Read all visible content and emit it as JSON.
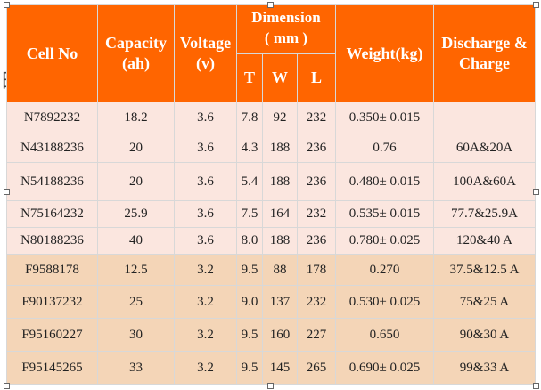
{
  "page_edge_glyph": "日",
  "headers": {
    "cell_no": "Cell No",
    "capacity": "Capacity\n(ah)",
    "capacity_line1": "Capacity",
    "capacity_line2": "(ah)",
    "voltage_line1": "Voltage",
    "voltage_line2": "(v)",
    "dimension_line1": "Dimension",
    "dimension_line2": "( mm )",
    "t": "T",
    "w": "W",
    "l": "L",
    "weight": "Weight(kg)",
    "discharge_line1": "Discharge &",
    "discharge_line2": "Charge"
  },
  "rows": [
    {
      "style": "light",
      "cell_no": "N7892232",
      "capacity": "18.2",
      "voltage": "3.6",
      "t": "7.8",
      "w": "92",
      "l": "232",
      "weight": "0.350± 0.015",
      "discharge": ""
    },
    {
      "style": "light",
      "cell_no": "N43188236",
      "capacity": "20",
      "voltage": "3.6",
      "t": "4.3",
      "w": "188",
      "l": "236",
      "weight": "0.76",
      "discharge": "60A&20A"
    },
    {
      "style": "light",
      "cell_no": "N54188236",
      "capacity": "20",
      "voltage": "3.6",
      "t": "5.4",
      "w": "188",
      "l": "236",
      "weight": "0.480± 0.015",
      "discharge": "100A&60A"
    },
    {
      "style": "light",
      "cell_no": "N75164232",
      "capacity": "25.9",
      "voltage": "3.6",
      "t": "7.5",
      "w": "164",
      "l": "232",
      "weight": "0.535± 0.015",
      "discharge": "77.7&25.9A"
    },
    {
      "style": "light",
      "cell_no": "N80188236",
      "capacity": "40",
      "voltage": "3.6",
      "t": "8.0",
      "w": "188",
      "l": "236",
      "weight": "0.780± 0.025",
      "discharge": "120&40 A"
    },
    {
      "style": "tan",
      "cell_no": "F9588178",
      "capacity": "12.5",
      "voltage": "3.2",
      "t": "9.5",
      "w": "88",
      "l": "178",
      "weight": "0.270",
      "discharge": "37.5&12.5 A"
    },
    {
      "style": "tan",
      "cell_no": "F90137232",
      "capacity": "25",
      "voltage": "3.2",
      "t": "9.0",
      "w": "137",
      "l": "232",
      "weight": "0.530± 0.025",
      "discharge": "75&25 A"
    },
    {
      "style": "tan",
      "cell_no": "F95160227",
      "capacity": "30",
      "voltage": "3.2",
      "t": "9.5",
      "w": "160",
      "l": "227",
      "weight": "0.650",
      "discharge": "90&30 A"
    },
    {
      "style": "tan",
      "cell_no": "F95145265",
      "capacity": "33",
      "voltage": "3.2",
      "t": "9.5",
      "w": "145",
      "l": "265",
      "weight": "0.690± 0.025",
      "discharge": "99&33 A"
    }
  ],
  "colors": {
    "header_bg": "#ff6500",
    "header_text": "#ffffff",
    "row_light": "#fbe6df",
    "row_tan": "#f4d5b7"
  }
}
